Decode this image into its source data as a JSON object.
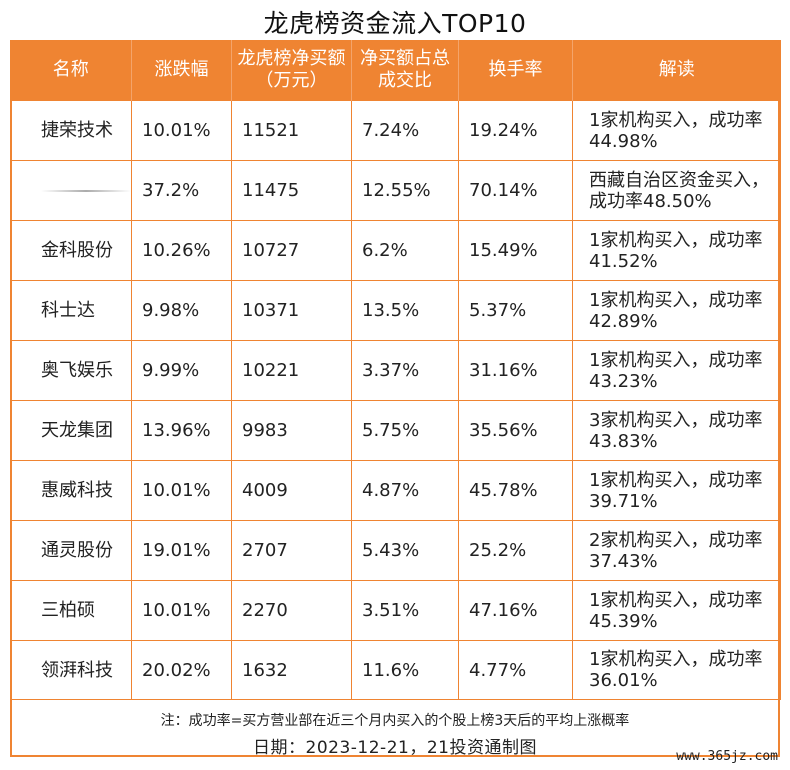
{
  "title": "龙虎榜资金流入TOP10",
  "headers": [
    "名称",
    "涨跌幅",
    "龙虎榜净买额（万元）",
    "净买额占总成交比",
    "换手率",
    "解读"
  ],
  "rows": [
    [
      "捷荣技术",
      "10.01%",
      "11521",
      "7.24%",
      "19.24%",
      "1家机构买入，成功率44.98%"
    ],
    [
      "",
      "37.2%",
      "11475",
      "12.55%",
      "70.14%",
      "西藏自治区资金买入，成功率48.50%"
    ],
    [
      "金科股份",
      "10.26%",
      "10727",
      "6.2%",
      "15.49%",
      "1家机构买入，成功率41.52%"
    ],
    [
      "科士达",
      "9.98%",
      "10371",
      "13.5%",
      "5.37%",
      "1家机构买入，成功率42.89%"
    ],
    [
      "奥飞娱乐",
      "9.99%",
      "10221",
      "3.37%",
      "31.16%",
      "1家机构买入，成功率43.23%"
    ],
    [
      "天龙集团",
      "13.96%",
      "9983",
      "5.75%",
      "35.56%",
      "3家机构买入，成功率43.83%"
    ],
    [
      "惠威科技",
      "10.01%",
      "4009",
      "4.87%",
      "45.78%",
      "1家机构买入，成功率39.71%"
    ],
    [
      "通灵股份",
      "19.01%",
      "2707",
      "5.43%",
      "25.2%",
      "2家机构买入，成功率37.43%"
    ],
    [
      "三柏硕",
      "10.01%",
      "2270",
      "3.51%",
      "47.16%",
      "1家机构买入，成功率45.39%"
    ],
    [
      "领湃科技",
      "20.02%",
      "1632",
      "11.6%",
      "4.77%",
      "1家机构买入，成功率36.01%"
    ]
  ],
  "note": "注：成功率=买方营业部在近三个月内买入的个股上榜3天后的平均上涨概率",
  "date_line": "日期：2023-12-21，21投资通制图",
  "watermark": "www.365jz.com",
  "colors": {
    "accent": "#ef8432",
    "header_text": "#ffffff"
  }
}
